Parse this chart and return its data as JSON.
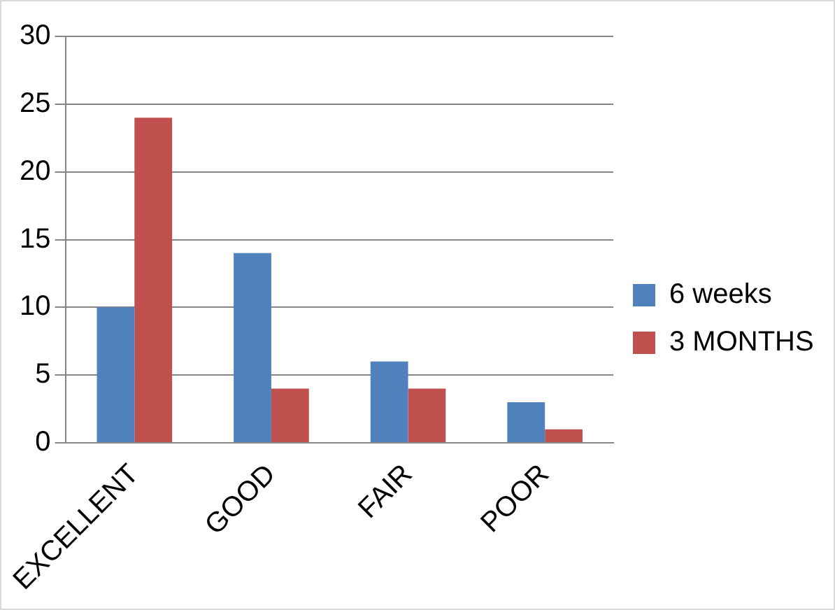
{
  "chart_data": {
    "type": "bar",
    "categories": [
      "EXCELLENT",
      "GOOD",
      "FAIR",
      "POOR"
    ],
    "series": [
      {
        "name": "6 weeks",
        "color": "#4f81bd",
        "values": [
          10,
          14,
          6,
          3
        ]
      },
      {
        "name": "3 MONTHS",
        "color": "#c0504d",
        "values": [
          24,
          4,
          4,
          1
        ]
      }
    ],
    "ylim": [
      0,
      30
    ],
    "yticks": [
      0,
      5,
      10,
      15,
      20,
      25,
      30
    ],
    "grid": "y",
    "legend": "right"
  }
}
